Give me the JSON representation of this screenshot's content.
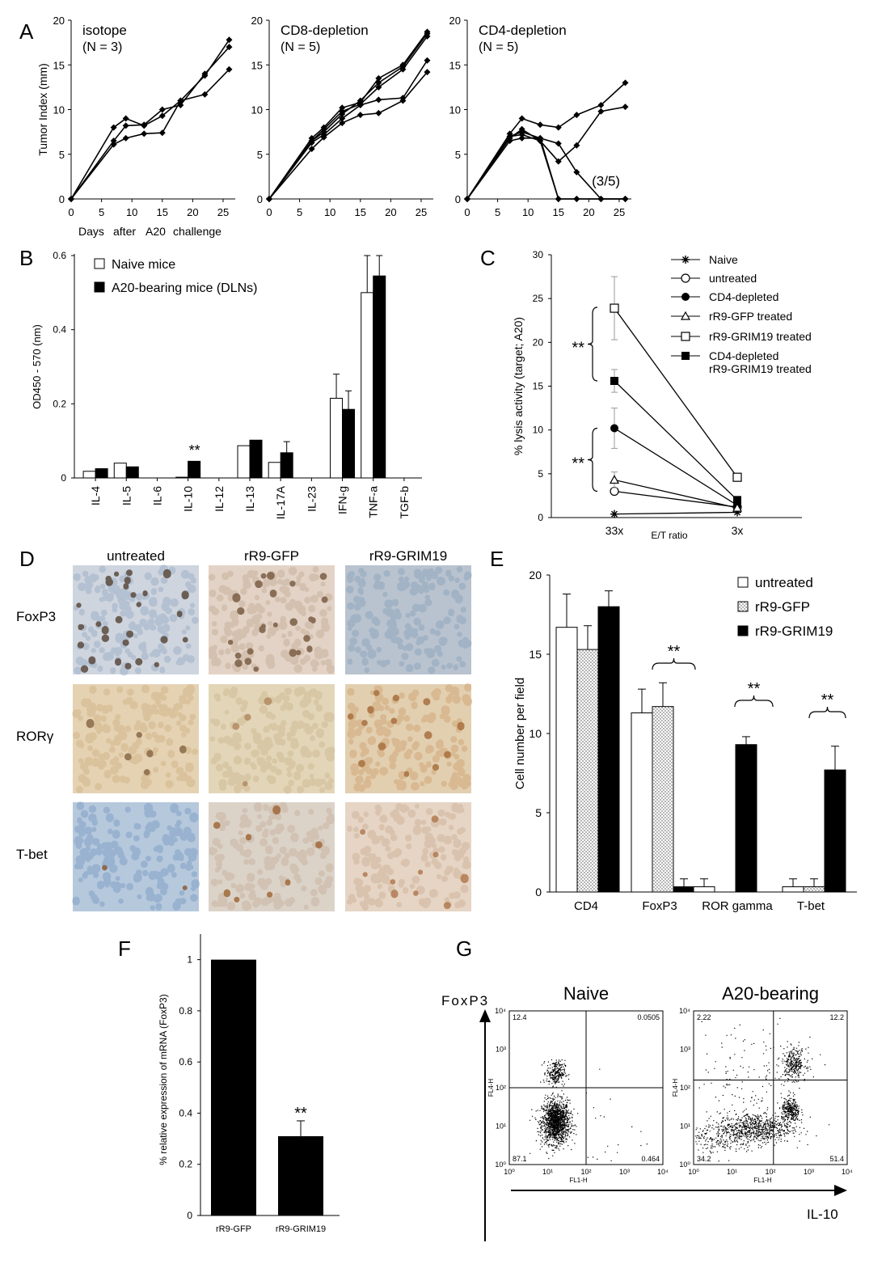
{
  "panels": {
    "A": "A",
    "B": "B",
    "C": "C",
    "D": "D",
    "E": "E",
    "F": "F",
    "G": "G"
  },
  "chart_data": [
    {
      "panel": "A",
      "type": "line",
      "title": "isotope",
      "subtitle": "(N = 3)",
      "xlabel": "Days    after    A20    challenge",
      "ylabel": "Tumor  Index  (mm)",
      "xlim": [
        0,
        27
      ],
      "ylim": [
        0,
        20
      ],
      "xticks": [
        0,
        5,
        10,
        15,
        20,
        25
      ],
      "yticks": [
        0,
        5,
        10,
        15,
        20
      ],
      "series": [
        {
          "x": [
            0,
            7,
            9,
            12,
            15,
            18,
            22,
            26
          ],
          "y": [
            0,
            8,
            9,
            8.2,
            9.3,
            11,
            13.8,
            17.8
          ]
        },
        {
          "x": [
            0,
            7,
            9,
            12,
            15,
            18,
            22,
            26
          ],
          "y": [
            0,
            6.5,
            8.2,
            8.3,
            10,
            10.5,
            14,
            17
          ]
        },
        {
          "x": [
            0,
            7,
            9,
            12,
            15,
            18,
            22,
            26
          ],
          "y": [
            0,
            6.1,
            6.8,
            7.3,
            7.4,
            11,
            11.7,
            14.5
          ]
        }
      ]
    },
    {
      "panel": "A2",
      "type": "line",
      "title": "CD8-depletion",
      "subtitle": "(N = 5)",
      "xlim": [
        0,
        27
      ],
      "ylim": [
        0,
        20
      ],
      "xticks": [
        0,
        5,
        10,
        15,
        20,
        25
      ],
      "yticks": [
        0,
        5,
        10,
        15,
        20
      ],
      "series": [
        {
          "x": [
            0,
            7,
            9,
            12,
            15,
            18,
            22,
            26
          ],
          "y": [
            0,
            6.8,
            8,
            10.2,
            10.8,
            13.5,
            15,
            18.7
          ]
        },
        {
          "x": [
            0,
            7,
            9,
            12,
            15,
            18,
            22,
            26
          ],
          "y": [
            0,
            6.5,
            7.5,
            9.5,
            11,
            13,
            14.8,
            18.5
          ]
        },
        {
          "x": [
            0,
            7,
            9,
            12,
            15,
            18,
            22,
            26
          ],
          "y": [
            0,
            6.3,
            7.2,
            9,
            10.5,
            11.1,
            11.3,
            15.5
          ]
        },
        {
          "x": [
            0,
            7,
            9,
            12,
            15,
            18,
            22,
            26
          ],
          "y": [
            0,
            5.6,
            6.9,
            8.5,
            9.4,
            9.6,
            11,
            14.2
          ]
        },
        {
          "x": [
            0,
            7,
            9,
            12,
            15,
            18,
            22,
            26
          ],
          "y": [
            0,
            6.5,
            7.8,
            9.8,
            10.6,
            12.5,
            14.5,
            18.2
          ]
        }
      ]
    },
    {
      "panel": "A3",
      "type": "line",
      "title": "CD4-depletion",
      "subtitle": "(N = 5)",
      "annotation": "(3/5)",
      "xlim": [
        0,
        27
      ],
      "ylim": [
        0,
        20
      ],
      "xticks": [
        0,
        5,
        10,
        15,
        20,
        25
      ],
      "yticks": [
        0,
        5,
        10,
        15,
        20
      ],
      "series": [
        {
          "x": [
            0,
            7,
            9,
            12,
            15,
            18,
            22,
            26
          ],
          "y": [
            0,
            7.3,
            9,
            8.3,
            8,
            9.4,
            10.5,
            13
          ]
        },
        {
          "x": [
            0,
            7,
            9,
            12,
            15,
            18,
            22,
            26
          ],
          "y": [
            0,
            7,
            7.5,
            6.8,
            6.2,
            3,
            0,
            0
          ]
        },
        {
          "x": [
            0,
            7,
            9,
            12,
            15,
            18,
            22,
            26
          ],
          "y": [
            0,
            6.8,
            7.8,
            6.5,
            4.2,
            6,
            9.8,
            10.3
          ]
        },
        {
          "x": [
            0,
            7,
            9,
            12,
            15,
            18,
            22,
            26
          ],
          "y": [
            0,
            6.5,
            6.8,
            6.8,
            0,
            0,
            0,
            0
          ]
        },
        {
          "x": [
            0,
            7,
            9,
            12,
            15,
            18,
            22,
            26
          ],
          "y": [
            0,
            7,
            7.2,
            6.5,
            0,
            0,
            0,
            0
          ]
        }
      ]
    },
    {
      "panel": "B",
      "type": "bar",
      "ylabel": "OD450 - 570 (nm)",
      "ylim": [
        0,
        0.6
      ],
      "yticks": [
        0,
        0.2,
        0.4,
        0.6
      ],
      "ytick_labels": [
        "0",
        "0.2",
        "0.4",
        "0.6"
      ],
      "categories": [
        "IL-4",
        "IL-5",
        "IL-6",
        "IL-10",
        "IL-12",
        "IL-13",
        "IL-17A",
        "IL-23",
        "IFN-g",
        "TNF-a",
        "TGF-b"
      ],
      "series": [
        {
          "name": "Naive   mice",
          "fill": "#ffffff",
          "values": [
            0.018,
            0.04,
            0,
            0.002,
            0,
            0.087,
            0.042,
            0,
            0.215,
            0.5,
            0
          ],
          "err": [
            0,
            0,
            0,
            0,
            0,
            0,
            0,
            0,
            0.065,
            0.1,
            0
          ]
        },
        {
          "name": "A20-bearing    mice   (DLNs)",
          "fill": "#000000",
          "values": [
            0.025,
            0.03,
            0,
            0.045,
            0,
            0.102,
            0.068,
            0,
            0.185,
            0.545,
            0
          ],
          "err": [
            0,
            0,
            0,
            0,
            0,
            0,
            0.03,
            0,
            0.05,
            0.055,
            0
          ]
        }
      ],
      "annotations": [
        {
          "category": "IL-10",
          "text": "**"
        }
      ]
    },
    {
      "panel": "C",
      "type": "line",
      "xlabel": "E/T ratio",
      "ylabel": "% lysis   activity    (target;   A20)",
      "categories": [
        "33x",
        "3x"
      ],
      "ylim": [
        0,
        30
      ],
      "yticks": [
        0,
        5,
        10,
        15,
        20,
        25,
        30
      ],
      "series": [
        {
          "name": "Naive",
          "marker": "star",
          "values": [
            0.4,
            0.6
          ],
          "err": [
            0,
            0
          ]
        },
        {
          "name": "untreated",
          "marker": "open-circle",
          "values": [
            3,
            1.2
          ],
          "err": [
            0,
            0
          ]
        },
        {
          "name": "CD4-depleted",
          "marker": "filled-circle",
          "values": [
            10.2,
            1.4
          ],
          "err": [
            2.3,
            0
          ]
        },
        {
          "name": "rR9-GFP     treated",
          "marker": "open-triangle",
          "values": [
            4.3,
            1.1
          ],
          "err": [
            0.9,
            0
          ]
        },
        {
          "name": "rR9-GRIM19     treated",
          "marker": "open-square",
          "values": [
            23.9,
            4.6
          ],
          "err": [
            3.6,
            0
          ]
        },
        {
          "name": "CD4-depleted",
          "name2": "rR9-GRIM19     treated",
          "marker": "filled-square",
          "values": [
            15.6,
            2
          ],
          "err": [
            1.3,
            0
          ]
        }
      ],
      "significance": [
        "**",
        "**"
      ]
    },
    {
      "panel": "E",
      "type": "bar",
      "ylabel": "Cell   number   per  field",
      "ylim": [
        0,
        20
      ],
      "yticks": [
        0,
        5,
        10,
        15,
        20
      ],
      "categories": [
        "CD4",
        "FoxP3",
        "ROR   gamma",
        "T-bet"
      ],
      "series": [
        {
          "name": "untreated",
          "fill": "#ffffff",
          "values": [
            16.7,
            11.3,
            0.33,
            0.33
          ],
          "err": [
            2.1,
            1.5,
            0.5,
            0.5
          ]
        },
        {
          "name": "rR9-GFP",
          "fill": "dots",
          "values": [
            15.3,
            11.7,
            0,
            0.33
          ],
          "err": [
            1.5,
            1.5,
            0,
            0.5
          ]
        },
        {
          "name": "rR9-GRIM19",
          "fill": "#000000",
          "values": [
            18,
            0.33,
            9.3,
            7.7
          ],
          "err": [
            1,
            0.5,
            0.5,
            1.5
          ]
        }
      ],
      "significance": [
        "**",
        "**",
        "**"
      ]
    },
    {
      "panel": "F",
      "type": "bar",
      "ylabel": "% relative    expression    of   mRNA   (FoxP3)",
      "ylim": [
        0,
        1
      ],
      "yticks": [
        0,
        0.2,
        0.4,
        0.6,
        0.8,
        1
      ],
      "categories": [
        "rR9-GFP",
        "rR9-GRIM19"
      ],
      "values": [
        1.0,
        0.31
      ],
      "err": [
        0,
        0.06
      ],
      "annotations": [
        {
          "category": "rR9-GRIM19",
          "text": "**"
        }
      ]
    },
    {
      "panel": "G",
      "type": "scatter",
      "xlabel": "IL-10",
      "ylabel": "FoxP3",
      "plots": [
        {
          "title": "Naive",
          "quadrants": {
            "UL": "12.4",
            "UR": "0.0505",
            "LL": "87.1",
            "LR": "0.464"
          }
        },
        {
          "title": "A20-bearing",
          "quadrants": {
            "UL": "2.22",
            "UR": "12.2",
            "LL": "34.2",
            "LR": "51.4"
          }
        }
      ],
      "axis_labels": {
        "x": "FL1-H",
        "y": "FL4-H"
      },
      "ticks": [
        "10⁰",
        "10¹",
        "10²",
        "10³",
        "10⁴"
      ]
    }
  ],
  "panel_d": {
    "columns": [
      "untreated",
      "rR9-GFP",
      "rR9-GRIM19"
    ],
    "rows": [
      "FoxP3",
      "RORγ",
      "T-bet"
    ]
  },
  "texts": {
    "days": "Days",
    "after": "after",
    "a20": "A20",
    "challenge": "challenge"
  }
}
